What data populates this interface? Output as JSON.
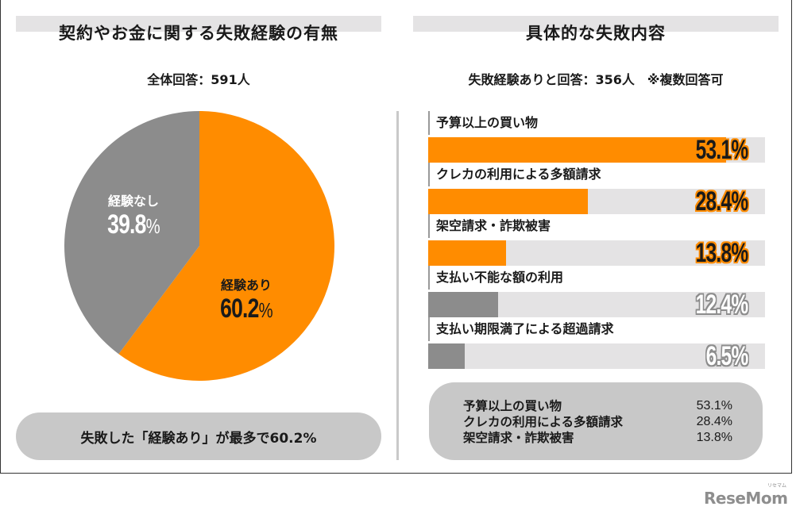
{
  "left_panel": {
    "title": "契約やお金に関する失敗経験の有無",
    "subtitle": "全体回答：591人",
    "pie": {
      "slices": [
        {
          "name": "経験あり",
          "value": 60.2,
          "pct_label": "60.2",
          "pct_sign": "%",
          "color": "#ff8c00",
          "text_color": "#1a1a1a"
        },
        {
          "name": "経験なし",
          "value": 39.8,
          "pct_label": "39.8",
          "pct_sign": "%",
          "color": "#8c8c8c",
          "text_color": "#ffffff"
        }
      ]
    },
    "summary": "失敗した「経験あり」が最多で60.2%"
  },
  "right_panel": {
    "title": "具体的な失敗内容",
    "subtitle": "失敗経験ありと回答：356人　※複数回答可",
    "bars": [
      {
        "label": "予算以上の買い物",
        "value": 53.1,
        "value_label": "53.1%",
        "color": "#ff8c00",
        "highlight": true
      },
      {
        "label": "クレカの利用による多額請求",
        "value": 28.4,
        "value_label": "28.4%",
        "color": "#ff8c00",
        "highlight": true
      },
      {
        "label": "架空請求・詐欺被害",
        "value": 13.8,
        "value_label": "13.8%",
        "color": "#ff8c00",
        "highlight": true
      },
      {
        "label": "支払い不能な額の利用",
        "value": 12.4,
        "value_label": "12.4%",
        "color": "#8c8c8c",
        "highlight": false
      },
      {
        "label": "支払い期限満了による超過請求",
        "value": 6.5,
        "value_label": "6.5%",
        "color": "#8c8c8c",
        "highlight": false
      }
    ],
    "summary": [
      {
        "label": "予算以上の買い物",
        "value": "53.1%"
      },
      {
        "label": "クレカの利用による多額請求",
        "value": "28.4%"
      },
      {
        "label": "架空請求・詐欺被害",
        "value": "13.8%"
      }
    ]
  },
  "logo": {
    "text": "ReseMom",
    "kana": "リセマム"
  },
  "colors": {
    "accent": "#ff8c00",
    "neutral": "#8c8c8c",
    "track": "#e4e3e4",
    "pill": "#c8c8c8"
  },
  "chart_data": [
    {
      "type": "pie",
      "title": "契約やお金に関する失敗経験の有無",
      "subtitle": "全体回答：591人",
      "categories": [
        "経験あり",
        "経験なし"
      ],
      "values": [
        60.2,
        39.8
      ],
      "colors": [
        "#ff8c00",
        "#8c8c8c"
      ],
      "unit": "%",
      "legend": "none (labels on slices)"
    },
    {
      "type": "bar",
      "orientation": "horizontal",
      "title": "具体的な失敗内容",
      "subtitle": "失敗経験ありと回答：356人　※複数回答可",
      "categories": [
        "予算以上の買い物",
        "クレカの利用による多額請求",
        "架空請求・詐欺被害",
        "支払い不能な額の利用",
        "支払い期限満了による超過請求"
      ],
      "values": [
        53.1,
        28.4,
        13.8,
        12.4,
        6.5
      ],
      "colors": [
        "#ff8c00",
        "#ff8c00",
        "#ff8c00",
        "#8c8c8c",
        "#8c8c8c"
      ],
      "unit": "%",
      "xlim": [
        0,
        60
      ],
      "grid": false,
      "xlabel": "",
      "ylabel": ""
    }
  ]
}
